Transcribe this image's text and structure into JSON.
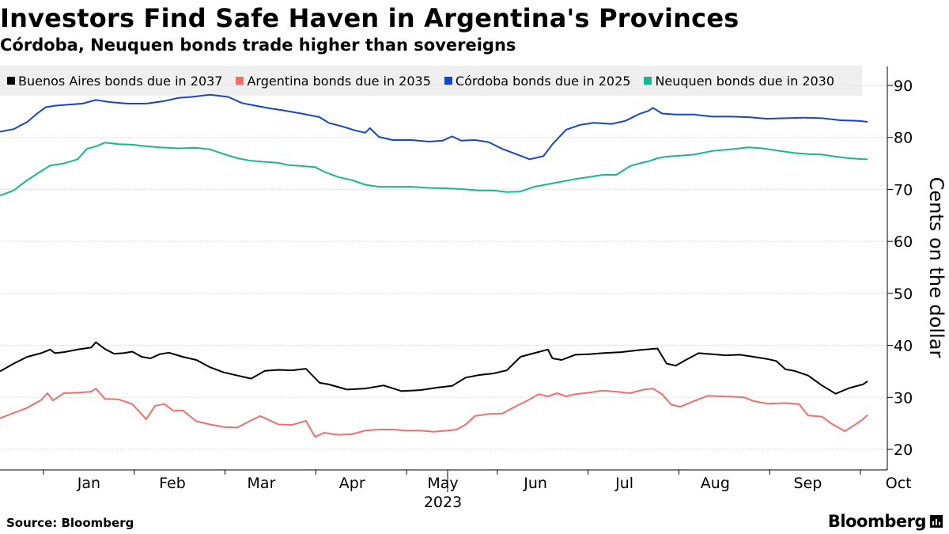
{
  "header": {
    "title": "Investors Find Safe Haven in Argentina's Provinces",
    "subtitle": "Córdoba, Neuquen bonds trade higher than sovereigns"
  },
  "footer": {
    "source": "Source: Bloomberg",
    "brand": "Bloomberg"
  },
  "chart_data": {
    "type": "line",
    "title": "Investors Find Safe Haven in Argentina's Provinces",
    "subtitle": "Córdoba, Neuquen bonds trade higher than sovereigns",
    "xlabel": "2023",
    "ylabel": "Cents on the dollar",
    "ylim": [
      18,
      95
    ],
    "yticks": [
      20,
      30,
      40,
      50,
      60,
      70,
      80,
      90
    ],
    "xlim": [
      0,
      9.55
    ],
    "xticks": [
      {
        "label": "Jan",
        "pos": 0.5
      },
      {
        "label": "Feb",
        "pos": 1.42
      },
      {
        "label": "Mar",
        "pos": 2.4
      },
      {
        "label": "Apr",
        "pos": 3.4
      },
      {
        "label": "May",
        "pos": 4.4
      },
      {
        "label": "Jun",
        "pos": 5.42
      },
      {
        "label": "Jul",
        "pos": 6.4
      },
      {
        "label": "Aug",
        "pos": 7.4
      },
      {
        "label": "Sep",
        "pos": 8.42
      },
      {
        "label": "Oct",
        "pos": 9.42
      }
    ],
    "year_label": "2023",
    "grid": true,
    "legend_position": "top",
    "series": [
      {
        "name": "Buenos Aires bonds due in 2037",
        "color": "#000000",
        "x": [
          0,
          0.15,
          0.3,
          0.45,
          0.55,
          0.6,
          0.7,
          0.85,
          1.0,
          1.05,
          1.15,
          1.25,
          1.35,
          1.45,
          1.55,
          1.65,
          1.75,
          1.85,
          2.0,
          2.15,
          2.3,
          2.45,
          2.6,
          2.75,
          2.9,
          3.05,
          3.2,
          3.35,
          3.5,
          3.6,
          3.8,
          4.0,
          4.2,
          4.4,
          4.6,
          4.8,
          4.95,
          5.1,
          5.25,
          5.4,
          5.55,
          5.7,
          5.85,
          6.0,
          6.05,
          6.15,
          6.3,
          6.45,
          6.6,
          6.8,
          7.0,
          7.2,
          7.3,
          7.4,
          7.5,
          7.65,
          7.8,
          7.95,
          8.1,
          8.25,
          8.4,
          8.5,
          8.6,
          8.7,
          8.85,
          9.0,
          9.15,
          9.3,
          9.45,
          9.5
        ],
        "values": [
          35,
          36.5,
          37.8,
          38.5,
          39.2,
          38.5,
          38.7,
          39.2,
          39.6,
          40.6,
          39.3,
          38.4,
          38.5,
          38.8,
          37.8,
          37.5,
          38.3,
          38.6,
          37.8,
          37.2,
          35.8,
          34.8,
          34.2,
          33.6,
          35.1,
          35.3,
          35.2,
          35.5,
          32.8,
          32.5,
          31.5,
          31.7,
          32.3,
          31.2,
          31.4,
          31.9,
          32.2,
          33.8,
          34.3,
          34.6,
          35.2,
          37.8,
          38.5,
          39.2,
          37.5,
          37.2,
          38.2,
          38.3,
          38.5,
          38.7,
          39.1,
          39.4,
          36.5,
          36.1,
          37.1,
          38.5,
          38.3,
          38.1,
          38.2,
          37.8,
          37.4,
          37.0,
          35.4,
          35.1,
          34.2,
          32.3,
          30.7,
          31.8,
          32.5,
          33.1
        ]
      },
      {
        "name": "Argentina bonds due in 2035",
        "color": "#f26d6d",
        "x": [
          0,
          0.15,
          0.3,
          0.45,
          0.52,
          0.58,
          0.7,
          0.85,
          1.0,
          1.05,
          1.15,
          1.3,
          1.45,
          1.6,
          1.7,
          1.8,
          1.9,
          2.0,
          2.15,
          2.3,
          2.45,
          2.6,
          2.75,
          2.85,
          2.95,
          3.05,
          3.2,
          3.35,
          3.45,
          3.55,
          3.7,
          3.85,
          4.0,
          4.15,
          4.3,
          4.45,
          4.6,
          4.75,
          4.9,
          5.0,
          5.1,
          5.2,
          5.35,
          5.5,
          5.65,
          5.8,
          5.9,
          6.0,
          6.1,
          6.2,
          6.3,
          6.45,
          6.6,
          6.75,
          6.9,
          7.05,
          7.15,
          7.25,
          7.35,
          7.45,
          7.6,
          7.75,
          7.9,
          8.05,
          8.15,
          8.25,
          8.4,
          8.6,
          8.75,
          8.85,
          9.0,
          9.1,
          9.25,
          9.35,
          9.45,
          9.5
        ],
        "values": [
          26,
          27,
          28,
          29.5,
          30.8,
          29.4,
          30.8,
          30.9,
          31.1,
          31.7,
          29.7,
          29.6,
          28.7,
          25.8,
          28.4,
          28.7,
          27.4,
          27.5,
          25.4,
          24.8,
          24.3,
          24.2,
          25.6,
          26.4,
          25.6,
          24.8,
          24.7,
          25.5,
          22.4,
          23.2,
          22.8,
          22.9,
          23.6,
          23.8,
          23.8,
          23.6,
          23.6,
          23.4,
          23.6,
          23.8,
          24.8,
          26.4,
          26.8,
          26.9,
          28.3,
          29.6,
          30.6,
          30.2,
          30.8,
          30.2,
          30.6,
          30.9,
          31.3,
          31.1,
          30.8,
          31.5,
          31.7,
          30.6,
          28.6,
          28.2,
          29.3,
          30.3,
          30.2,
          30.1,
          30.0,
          29.3,
          28.8,
          28.9,
          28.7,
          26.5,
          26.3,
          25.0,
          23.5,
          24.6,
          25.8,
          26.6
        ]
      },
      {
        "name": "Córdoba bonds due in 2025",
        "color": "#1744c9",
        "x": [
          0,
          0.15,
          0.3,
          0.4,
          0.5,
          0.6,
          0.75,
          0.9,
          1.05,
          1.2,
          1.4,
          1.6,
          1.8,
          1.95,
          2.1,
          2.3,
          2.5,
          2.65,
          2.8,
          2.95,
          3.1,
          3.3,
          3.5,
          3.6,
          3.75,
          3.9,
          4.0,
          4.05,
          4.15,
          4.3,
          4.5,
          4.7,
          4.85,
          4.95,
          5.05,
          5.2,
          5.35,
          5.5,
          5.65,
          5.8,
          5.95,
          6.05,
          6.2,
          6.35,
          6.5,
          6.7,
          6.85,
          7.0,
          7.1,
          7.15,
          7.25,
          7.4,
          7.6,
          7.8,
          8.0,
          8.2,
          8.4,
          8.6,
          8.8,
          9.0,
          9.2,
          9.4,
          9.5
        ],
        "values": [
          81.1,
          81.6,
          83,
          84.5,
          85.8,
          86.1,
          86.3,
          86.5,
          87.2,
          86.8,
          86.5,
          86.5,
          87,
          87.6,
          87.8,
          88.2,
          87.8,
          86.6,
          86.1,
          85.6,
          85.2,
          84.6,
          83.9,
          82.8,
          82.1,
          81.3,
          80.9,
          81.8,
          80.1,
          79.5,
          79.5,
          79.2,
          79.4,
          80.2,
          79.4,
          79.5,
          79.1,
          77.8,
          76.8,
          75.8,
          76.4,
          78.7,
          81.5,
          82.4,
          82.8,
          82.6,
          83.2,
          84.5,
          85.1,
          85.7,
          84.6,
          84.4,
          84.4,
          84,
          84,
          83.9,
          83.6,
          83.7,
          83.8,
          83.7,
          83.3,
          83.2,
          83.0
        ]
      },
      {
        "name": "Neuquen bonds due in 2030",
        "color": "#17b890",
        "x": [
          0,
          0.15,
          0.3,
          0.45,
          0.55,
          0.7,
          0.85,
          0.95,
          1.05,
          1.15,
          1.3,
          1.45,
          1.6,
          1.75,
          1.95,
          2.15,
          2.3,
          2.45,
          2.6,
          2.75,
          2.9,
          3.05,
          3.15,
          3.3,
          3.45,
          3.55,
          3.7,
          3.85,
          4.0,
          4.15,
          4.3,
          4.5,
          4.7,
          4.9,
          5.1,
          5.25,
          5.4,
          5.55,
          5.7,
          5.85,
          6.0,
          6.15,
          6.3,
          6.45,
          6.6,
          6.75,
          6.9,
          7.0,
          7.1,
          7.2,
          7.3,
          7.45,
          7.6,
          7.8,
          8.0,
          8.2,
          8.35,
          8.5,
          8.7,
          8.85,
          9.0,
          9.15,
          9.3,
          9.45,
          9.5
        ],
        "values": [
          68.8,
          69.8,
          71.8,
          73.5,
          74.6,
          75,
          75.8,
          77.8,
          78.3,
          79,
          78.7,
          78.6,
          78.3,
          78.1,
          77.9,
          78,
          77.7,
          76.8,
          76,
          75.5,
          75.3,
          75.1,
          74.7,
          74.5,
          74.3,
          73.4,
          72.4,
          71.8,
          70.9,
          70.5,
          70.5,
          70.5,
          70.3,
          70.2,
          70.0,
          69.8,
          69.8,
          69.5,
          69.6,
          70.5,
          71,
          71.5,
          72,
          72.4,
          72.8,
          72.8,
          74.5,
          75,
          75.4,
          76,
          76.3,
          76.5,
          76.7,
          77.4,
          77.7,
          78.1,
          77.9,
          77.5,
          77,
          76.8,
          76.7,
          76.3,
          76.0,
          75.8,
          75.8
        ]
      }
    ]
  }
}
